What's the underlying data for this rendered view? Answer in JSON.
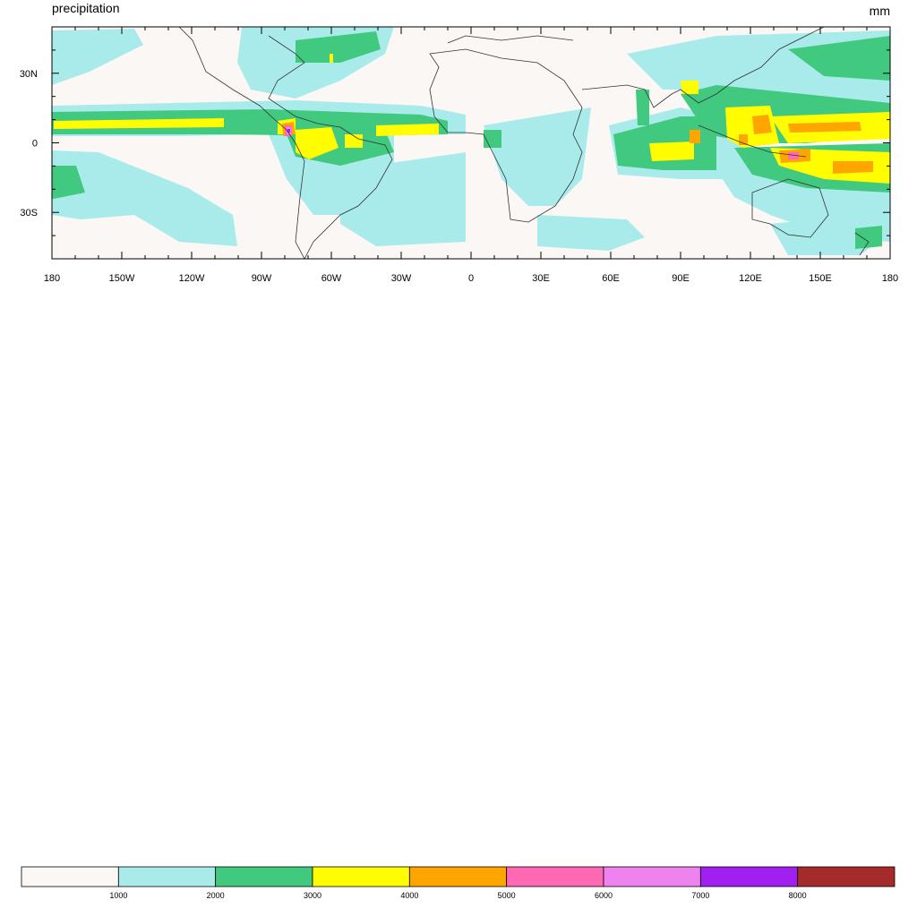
{
  "map": {
    "title": "precipitation",
    "units": "mm",
    "x_ticks": [
      "180",
      "150W",
      "120W",
      "90W",
      "60W",
      "30W",
      "0",
      "30E",
      "60E",
      "90E",
      "120E",
      "150E",
      "180"
    ],
    "y_ticks": [
      "30N",
      "0",
      "30S"
    ],
    "lon_range": [
      -180,
      180
    ],
    "lat_range": [
      -50,
      50
    ]
  },
  "colorbar": {
    "colors": [
      "#fbf7f5",
      "#a9ebeb",
      "#41c97f",
      "#fffd00",
      "#ffa500",
      "#ff69b4",
      "#ee82ee",
      "#a020f0",
      "#a52a2a"
    ],
    "labels": [
      "1000",
      "2000",
      "3000",
      "4000",
      "5000",
      "6000",
      "7000",
      "8000"
    ]
  }
}
